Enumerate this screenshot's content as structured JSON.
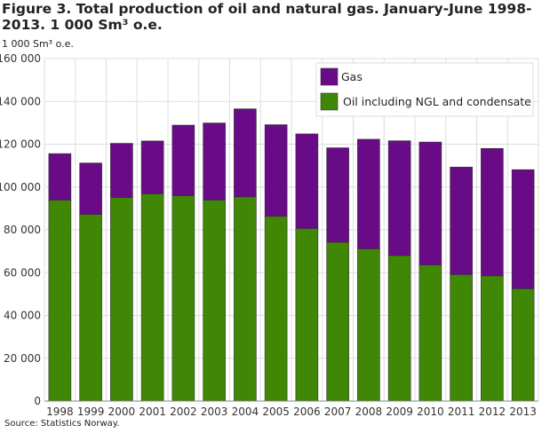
{
  "chart_data": {
    "type": "bar",
    "stacked": true,
    "title": "Figure 3. Total production of oil and natural gas. January-June 1998-2013. 1 000 Sm³ o.e.",
    "ylabel": "1 000 Sm³ o.e.",
    "xlabel": "",
    "ylim": [
      0,
      160000
    ],
    "yticks": [
      0,
      20000,
      40000,
      60000,
      80000,
      100000,
      120000,
      140000,
      160000
    ],
    "ytick_labels": [
      "0",
      "20 000",
      "40 000",
      "60 000",
      "80 000",
      "100 000",
      "120 000",
      "140 000",
      "160 000"
    ],
    "grid": true,
    "legend_position": "top-right",
    "categories": [
      "1998",
      "1999",
      "2000",
      "2001",
      "2002",
      "2003",
      "2004",
      "2005",
      "2006",
      "2007",
      "2008",
      "2009",
      "2010",
      "2011",
      "2012",
      "2013"
    ],
    "series": [
      {
        "name": "Oil including NGL and condensate",
        "color": "#3f8704",
        "values": [
          93900,
          87200,
          95100,
          96800,
          95900,
          93900,
          95400,
          86300,
          80600,
          74200,
          71100,
          68000,
          63600,
          59100,
          58500,
          52500
        ]
      },
      {
        "name": "Gas",
        "color": "#690a87",
        "values": [
          21700,
          24000,
          25300,
          24700,
          33000,
          36000,
          41100,
          42800,
          44200,
          44100,
          51200,
          53600,
          57400,
          50200,
          59500,
          55600
        ]
      }
    ],
    "source": "Source: Statistics Norway."
  }
}
